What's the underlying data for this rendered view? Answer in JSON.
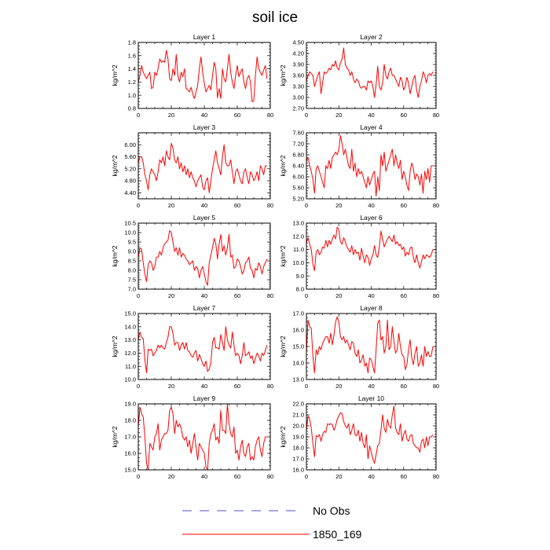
{
  "figure": {
    "title": "soil ice",
    "legend": [
      {
        "label": "No Obs",
        "color": "#5050c8",
        "dash": "dashed"
      },
      {
        "label": "1850_169",
        "color": "#ff0000",
        "dash": "solid"
      }
    ]
  },
  "chart_data": [
    {
      "type": "line",
      "title": "Layer 1",
      "ylabel": "kg/m^2",
      "xlim": [
        0,
        80
      ],
      "xticks": [
        0,
        20,
        40,
        60,
        80
      ],
      "ylim": [
        0.8,
        1.8
      ],
      "yticks": [
        "0.8",
        "1.0",
        "1.2",
        "1.4",
        "1.6",
        "1.8"
      ],
      "series": [
        {
          "name": "1850_169",
          "color": "#ff0000",
          "values": [
            1.2,
            1.3,
            1.45,
            1.35,
            1.3,
            1.25,
            1.3,
            1.35,
            1.1,
            1.12,
            1.35,
            1.3,
            1.4,
            1.55,
            1.5,
            1.52,
            1.5,
            1.68,
            1.55,
            1.25,
            1.22,
            1.4,
            1.3,
            1.62,
            1.3,
            1.2,
            1.35,
            1.28,
            1.4,
            1.1,
            1.08,
            1.05,
            1.12,
            1.02,
            0.95,
            1.05,
            1.15,
            1.4,
            1.58,
            1.35,
            1.18,
            1.05,
            1.1,
            1.15,
            1.08,
            1.3,
            1.5,
            1.4,
            0.96,
            1.1,
            0.95,
            1.4,
            1.25,
            1.2,
            1.4,
            1.62,
            1.35,
            1.2,
            1.1,
            1.3,
            1.45,
            1.28,
            1.35,
            1.4,
            1.2,
            1.1,
            1.25,
            1.3,
            1.2,
            0.9,
            0.92,
            1.3,
            1.58,
            1.4,
            1.35,
            1.3,
            1.38,
            1.45,
            1.25
          ]
        }
      ]
    },
    {
      "type": "line",
      "title": "Layer 2",
      "ylabel": "kg/m^2",
      "xlim": [
        0,
        80
      ],
      "xticks": [
        0,
        20,
        40,
        60,
        80
      ],
      "ylim": [
        2.7,
        4.5
      ],
      "yticks": [
        "2.70",
        "3.00",
        "3.30",
        "3.60",
        "3.90",
        "4.20",
        "4.50"
      ],
      "series": [
        {
          "name": "1850_169",
          "color": "#ff0000",
          "values": [
            3.45,
            3.6,
            3.7,
            3.65,
            3.6,
            3.3,
            3.45,
            3.6,
            3.7,
            3.1,
            3.4,
            3.7,
            3.65,
            3.7,
            3.8,
            3.75,
            3.9,
            3.85,
            4.0,
            3.8,
            3.75,
            3.95,
            4.05,
            4.35,
            3.9,
            3.8,
            3.75,
            3.6,
            3.7,
            3.5,
            3.4,
            3.5,
            3.45,
            3.3,
            3.25,
            3.3,
            3.3,
            3.2,
            3.45,
            3.4,
            3.45,
            3.3,
            3.0,
            3.35,
            3.85,
            3.3,
            3.2,
            3.4,
            3.9,
            3.6,
            3.5,
            3.7,
            3.8,
            3.6,
            3.6,
            3.5,
            3.4,
            3.3,
            3.55,
            3.45,
            3.2,
            3.3,
            3.55,
            3.4,
            3.1,
            3.3,
            3.5,
            3.6,
            3.2,
            3.0,
            3.3,
            3.45,
            3.7,
            3.6,
            3.4,
            3.6,
            3.65,
            3.6,
            3.7
          ]
        }
      ]
    },
    {
      "type": "line",
      "title": "Layer 3",
      "ylabel": "kg/m^2",
      "xlim": [
        0,
        80
      ],
      "xticks": [
        0,
        20,
        40,
        60,
        80
      ],
      "ylim": [
        4.2,
        6.4
      ],
      "yticks": [
        "4.40",
        "4.80",
        "5.20",
        "5.60",
        "6.00"
      ],
      "series": [
        {
          "name": "1850_169",
          "color": "#ff0000",
          "values": [
            5.4,
            5.6,
            5.6,
            5.4,
            5.0,
            4.8,
            4.5,
            5.0,
            5.2,
            5.1,
            5.0,
            4.8,
            5.1,
            5.5,
            5.4,
            5.6,
            5.3,
            5.8,
            5.6,
            5.5,
            6.05,
            5.9,
            5.5,
            5.4,
            5.6,
            5.2,
            5.4,
            5.1,
            5.3,
            5.0,
            5.2,
            4.9,
            5.1,
            4.9,
            4.8,
            4.6,
            4.8,
            4.9,
            5.0,
            4.6,
            4.5,
            4.8,
            4.9,
            4.4,
            4.8,
            5.2,
            5.5,
            5.8,
            5.4,
            5.2,
            5.0,
            5.6,
            6.0,
            5.4,
            5.3,
            5.3,
            5.5,
            5.1,
            4.7,
            5.1,
            5.2,
            5.0,
            4.8,
            4.7,
            5.1,
            5.2,
            4.9,
            4.7,
            5.1,
            5.0,
            4.8,
            4.9,
            5.1,
            4.8,
            5.3,
            5.2,
            5.0,
            5.3,
            5.3
          ]
        }
      ]
    },
    {
      "type": "line",
      "title": "Layer 4",
      "ylabel": "kg/m^2",
      "xlim": [
        0,
        80
      ],
      "xticks": [
        0,
        20,
        40,
        60,
        80
      ],
      "ylim": [
        5.2,
        7.6
      ],
      "yticks": [
        "5.20",
        "5.60",
        "6.00",
        "6.40",
        "6.80",
        "7.20",
        "7.60"
      ],
      "series": [
        {
          "name": "1850_169",
          "color": "#ff0000",
          "values": [
            6.6,
            6.7,
            6.4,
            6.2,
            5.9,
            5.4,
            6.3,
            6.4,
            6.2,
            6.0,
            5.8,
            5.6,
            6.4,
            6.3,
            6.6,
            6.3,
            6.7,
            6.8,
            6.9,
            6.8,
            7.0,
            7.5,
            7.2,
            6.8,
            7.0,
            6.7,
            6.4,
            6.3,
            7.0,
            6.2,
            6.5,
            6.0,
            6.3,
            6.1,
            6.2,
            6.0,
            5.8,
            5.6,
            6.0,
            5.7,
            5.9,
            6.1,
            6.2,
            5.3,
            6.0,
            5.5,
            6.8,
            6.4,
            6.9,
            6.2,
            6.4,
            6.6,
            6.8,
            7.0,
            6.4,
            6.8,
            6.5,
            6.3,
            6.6,
            5.9,
            6.2,
            6.0,
            5.7,
            5.5,
            6.2,
            6.5,
            6.3,
            5.9,
            6.1,
            6.0,
            5.7,
            6.1,
            5.4,
            6.2,
            5.9,
            6.3,
            5.8,
            6.4,
            6.4
          ]
        }
      ]
    },
    {
      "type": "line",
      "title": "Layer 5",
      "ylabel": "kg/m^2",
      "xlim": [
        0,
        80
      ],
      "xticks": [
        0,
        20,
        40,
        60,
        80
      ],
      "ylim": [
        7.0,
        10.5
      ],
      "yticks": [
        "7.0",
        "7.5",
        "8.0",
        "8.5",
        "9.0",
        "9.5",
        "10.0",
        "10.5"
      ],
      "series": [
        {
          "name": "1850_169",
          "color": "#ff0000",
          "values": [
            8.7,
            9.2,
            9.1,
            8.4,
            7.8,
            7.4,
            8.3,
            8.5,
            8.4,
            8.0,
            8.2,
            8.7,
            8.7,
            9.0,
            8.8,
            9.2,
            9.4,
            9.5,
            9.6,
            10.1,
            10.0,
            9.5,
            9.0,
            9.2,
            8.8,
            9.2,
            8.7,
            8.9,
            8.8,
            8.6,
            8.5,
            8.3,
            8.4,
            8.5,
            8.0,
            8.2,
            8.1,
            7.6,
            8.0,
            8.2,
            7.8,
            7.4,
            7.2,
            8.4,
            8.8,
            9.2,
            9.7,
            9.4,
            8.6,
            9.4,
            9.9,
            9.0,
            9.3,
            8.8,
            9.2,
            9.9,
            8.7,
            8.8,
            8.1,
            8.2,
            8.6,
            8.5,
            8.2,
            7.8,
            8.0,
            8.4,
            8.5,
            8.7,
            8.1,
            8.0,
            7.6,
            8.1,
            8.0,
            8.4,
            8.2,
            7.8,
            8.2,
            8.4,
            8.6
          ]
        }
      ]
    },
    {
      "type": "line",
      "title": "Layer 6",
      "ylabel": "kg/m^2",
      "xlim": [
        0,
        80
      ],
      "xticks": [
        0,
        20,
        40,
        60,
        80
      ],
      "ylim": [
        8.0,
        13.0
      ],
      "yticks": [
        "8.0",
        "9.0",
        "10.0",
        "11.0",
        "12.0",
        "13.0"
      ],
      "series": [
        {
          "name": "1850_169",
          "color": "#ff0000",
          "values": [
            11.5,
            11.9,
            11.4,
            11.0,
            9.9,
            9.4,
            10.8,
            11.0,
            10.6,
            10.8,
            11.2,
            11.1,
            11.7,
            11.2,
            11.7,
            11.4,
            11.8,
            12.1,
            11.8,
            12.7,
            12.5,
            11.6,
            11.4,
            11.9,
            11.6,
            11.2,
            11.0,
            10.8,
            11.3,
            10.6,
            11.0,
            10.7,
            10.8,
            10.2,
            11.1,
            10.5,
            10.0,
            10.6,
            10.4,
            9.8,
            10.3,
            10.6,
            11.3,
            10.6,
            10.4,
            11.2,
            12.4,
            11.8,
            11.2,
            11.5,
            11.8,
            12.0,
            11.8,
            11.6,
            12.1,
            11.4,
            11.6,
            11.3,
            11.4,
            11.0,
            11.2,
            10.5,
            10.8,
            10.6,
            11.1,
            11.2,
            10.4,
            10.0,
            10.6,
            10.0,
            9.6,
            10.1,
            10.6,
            10.3,
            10.6,
            10.5,
            10.4,
            10.6,
            11.0
          ]
        }
      ]
    },
    {
      "type": "line",
      "title": "Layer 7",
      "ylabel": "kg/m^2",
      "xlim": [
        0,
        80
      ],
      "xticks": [
        0,
        20,
        40,
        60,
        80
      ],
      "ylim": [
        10.0,
        15.0
      ],
      "yticks": [
        "10.0",
        "11.0",
        "12.0",
        "13.0",
        "14.0",
        "15.0"
      ],
      "series": [
        {
          "name": "1850_169",
          "color": "#ff0000",
          "values": [
            13.0,
            13.6,
            13.2,
            13.1,
            11.5,
            10.5,
            12.3,
            12.2,
            12.3,
            11.8,
            12.0,
            12.2,
            12.6,
            12.4,
            12.6,
            12.4,
            12.3,
            12.8,
            13.2,
            14.0,
            14.0,
            13.5,
            12.6,
            12.8,
            12.8,
            12.2,
            12.6,
            12.8,
            12.3,
            12.8,
            12.2,
            12.1,
            11.8,
            11.7,
            12.0,
            12.2,
            11.4,
            11.9,
            11.6,
            11.2,
            11.0,
            11.4,
            10.6,
            10.8,
            11.3,
            12.8,
            13.2,
            12.4,
            12.4,
            12.3,
            13.4,
            12.8,
            12.2,
            14.0,
            13.0,
            12.6,
            12.4,
            13.6,
            12.6,
            11.8,
            12.0,
            11.8,
            11.2,
            11.8,
            12.8,
            11.8,
            11.9,
            12.1,
            11.6,
            11.8,
            11.2,
            11.6,
            12.0,
            11.8,
            11.4,
            12.0,
            11.8,
            12.2,
            12.6
          ]
        }
      ]
    },
    {
      "type": "line",
      "title": "Layer 8",
      "ylabel": "kg/m^2",
      "xlim": [
        0,
        80
      ],
      "xticks": [
        0,
        20,
        40,
        60,
        80
      ],
      "ylim": [
        13.0,
        17.0
      ],
      "yticks": [
        "13.0",
        "14.0",
        "15.0",
        "16.0",
        "17.0"
      ],
      "series": [
        {
          "name": "1850_169",
          "color": "#ff0000",
          "values": [
            14.6,
            16.6,
            16.2,
            16.1,
            14.4,
            13.4,
            14.8,
            14.5,
            15.0,
            14.8,
            15.2,
            15.4,
            15.6,
            15.6,
            15.2,
            15.8,
            15.1,
            15.7,
            16.5,
            16.8,
            16.5,
            15.6,
            15.4,
            15.6,
            15.2,
            15.4,
            15.1,
            14.8,
            15.3,
            15.2,
            14.6,
            14.4,
            14.8,
            14.0,
            14.2,
            14.5,
            13.8,
            14.0,
            13.4,
            14.3,
            14.2,
            13.8,
            13.4,
            14.8,
            16.4,
            16.6,
            15.4,
            15.6,
            14.6,
            15.0,
            16.6,
            14.8,
            15.0,
            16.2,
            15.3,
            14.6,
            14.8,
            15.8,
            15.0,
            14.5,
            14.4,
            13.6,
            13.9,
            14.8,
            15.4,
            14.3,
            13.9,
            14.6,
            15.0,
            13.8,
            14.0,
            14.5,
            13.8,
            15.0,
            14.4,
            14.7,
            14.4,
            14.4,
            15.0
          ]
        }
      ]
    },
    {
      "type": "line",
      "title": "Layer 9",
      "ylabel": "kg/m^2",
      "xlim": [
        0,
        80
      ],
      "xticks": [
        0,
        20,
        40,
        60,
        80
      ],
      "ylim": [
        15.0,
        19.0
      ],
      "yticks": [
        "15.0",
        "16.0",
        "17.0",
        "18.0",
        "19.0"
      ],
      "series": [
        {
          "name": "1850_169",
          "color": "#ff0000",
          "values": [
            17.6,
            18.8,
            18.4,
            18.2,
            17.0,
            15.4,
            15.0,
            16.6,
            16.4,
            16.2,
            17.0,
            17.2,
            17.8,
            16.2,
            16.8,
            17.0,
            17.2,
            17.2,
            17.4,
            18.6,
            18.8,
            18.4,
            17.2,
            18.0,
            17.6,
            17.8,
            17.5,
            17.0,
            16.8,
            17.0,
            16.4,
            16.8,
            16.0,
            16.6,
            17.2,
            16.4,
            15.6,
            16.6,
            16.4,
            16.2,
            16.0,
            15.2,
            15.0,
            16.6,
            17.2,
            17.4,
            17.8,
            16.8,
            17.0,
            16.6,
            18.6,
            17.4,
            17.4,
            17.2,
            19.0,
            17.8,
            17.2,
            17.0,
            17.6,
            16.0,
            16.2,
            15.6,
            16.4,
            16.8,
            16.0,
            15.8,
            16.4,
            16.6,
            15.6,
            15.8,
            15.6,
            16.4,
            16.8,
            17.0,
            16.2,
            15.8,
            16.6,
            17.0,
            17.0
          ]
        }
      ]
    },
    {
      "type": "line",
      "title": "Layer 10",
      "ylabel": "kg/m^2",
      "xlim": [
        0,
        80
      ],
      "xticks": [
        0,
        20,
        40,
        60,
        80
      ],
      "ylim": [
        16.0,
        22.0
      ],
      "yticks": [
        "16.0",
        "17.0",
        "18.0",
        "19.0",
        "20.0",
        "21.0",
        "22.0"
      ],
      "series": [
        {
          "name": "1850_169",
          "color": "#ff0000",
          "values": [
            19.6,
            20.9,
            20.6,
            19.8,
            18.4,
            17.2,
            19.1,
            19.0,
            19.2,
            18.6,
            19.2,
            19.5,
            19.4,
            20.2,
            20.1,
            20.2,
            20.1,
            19.6,
            20.0,
            20.6,
            20.9,
            21.2,
            21.1,
            20.4,
            20.0,
            19.8,
            20.2,
            19.2,
            19.6,
            20.2,
            19.2,
            19.1,
            19.6,
            18.6,
            19.4,
            18.4,
            18.0,
            19.2,
            17.0,
            18.2,
            17.6,
            17.0,
            16.6,
            17.4,
            18.2,
            18.4,
            19.6,
            21.0,
            19.8,
            19.4,
            20.6,
            20.0,
            19.8,
            21.0,
            21.8,
            19.8,
            19.4,
            19.2,
            20.2,
            18.6,
            19.2,
            19.6,
            18.8,
            18.6,
            19.1,
            19.2,
            18.4,
            18.2,
            18.0,
            18.0,
            17.6,
            18.6,
            18.8,
            18.0,
            19.0,
            18.2,
            19.0,
            19.0,
            19.2
          ]
        }
      ]
    }
  ]
}
